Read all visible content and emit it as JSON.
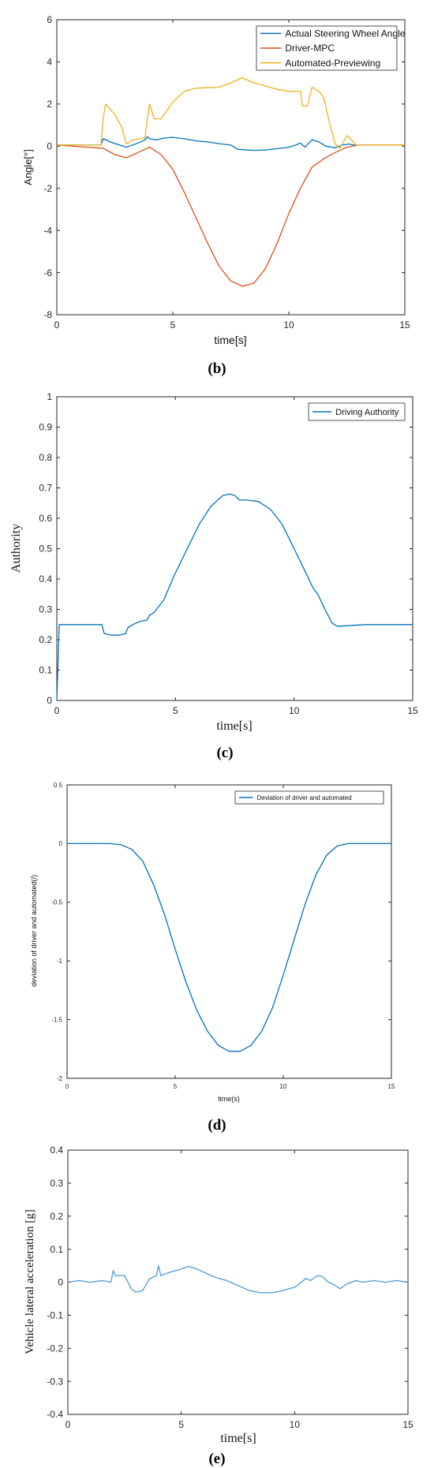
{
  "chart_data": [
    {
      "id": "b",
      "type": "line",
      "panel_label": "(b)",
      "xlabel": "time[s]",
      "ylabel": "Angle[°]",
      "xlim": [
        0,
        15
      ],
      "ylim": [
        -8,
        6
      ],
      "xticks": [
        "0",
        "5",
        "10",
        "15"
      ],
      "yticks": [
        "-8",
        "-6",
        "-4",
        "-2",
        "0",
        "2",
        "4",
        "6"
      ],
      "legend_position": "top-right",
      "series": [
        {
          "name": "Actual Steering Wheel Angle",
          "color": "#0072BD",
          "x": [
            0,
            1.9,
            2.0,
            2.3,
            2.7,
            3.0,
            3.5,
            3.8,
            3.9,
            4.0,
            4.3,
            4.6,
            5.0,
            5.5,
            6.0,
            6.5,
            7.0,
            7.5,
            7.8,
            8.5,
            9.0,
            9.5,
            10.0,
            10.3,
            10.5,
            10.7,
            11.0,
            11.3,
            11.6,
            12.0,
            12.3,
            12.6,
            12.8,
            13.0,
            15.0
          ],
          "y": [
            0.05,
            0.05,
            0.35,
            0.2,
            0.05,
            -0.05,
            0.15,
            0.3,
            0.45,
            0.35,
            0.3,
            0.38,
            0.42,
            0.35,
            0.25,
            0.2,
            0.12,
            0.05,
            -0.15,
            -0.2,
            -0.18,
            -0.12,
            -0.05,
            0.05,
            0.15,
            -0.05,
            0.3,
            0.2,
            0.0,
            -0.08,
            0.05,
            0.1,
            0.05,
            0.05,
            0.05
          ]
        },
        {
          "name": "Driver-MPC",
          "color": "#D95319",
          "x": [
            0,
            2.0,
            2.5,
            3.0,
            3.5,
            4.0,
            4.5,
            5.0,
            5.5,
            6.0,
            6.5,
            7.0,
            7.5,
            8.0,
            8.5,
            9.0,
            9.5,
            10.0,
            10.5,
            11.0,
            11.5,
            12.0,
            12.5,
            13.0,
            15.0
          ],
          "y": [
            0.05,
            -0.1,
            -0.4,
            -0.55,
            -0.3,
            -0.05,
            -0.4,
            -1.1,
            -2.2,
            -3.4,
            -4.6,
            -5.7,
            -6.4,
            -6.65,
            -6.5,
            -5.8,
            -4.6,
            -3.2,
            -2.0,
            -1.0,
            -0.6,
            -0.3,
            -0.05,
            0.05,
            0.05
          ]
        },
        {
          "name": "Automated-Previewing",
          "color": "#EDB120",
          "x": [
            0,
            1.9,
            2.0,
            2.1,
            2.5,
            2.8,
            3.0,
            3.3,
            3.8,
            3.9,
            4.0,
            4.2,
            4.5,
            5.0,
            5.5,
            6.0,
            7.0,
            7.5,
            8.0,
            8.5,
            9.0,
            9.5,
            10.0,
            10.5,
            10.6,
            10.8,
            11.0,
            11.3,
            11.5,
            11.8,
            12.0,
            12.2,
            12.5,
            12.7,
            12.9,
            15.0
          ],
          "y": [
            0.05,
            0.05,
            1.3,
            2.0,
            1.5,
            0.9,
            0.1,
            0.3,
            0.4,
            1.3,
            2.0,
            1.3,
            1.3,
            2.1,
            2.6,
            2.75,
            2.8,
            3.0,
            3.25,
            3.0,
            2.85,
            2.7,
            2.6,
            2.6,
            1.9,
            1.9,
            2.8,
            2.6,
            2.3,
            0.9,
            0.1,
            -0.1,
            0.5,
            0.3,
            0.05,
            0.05
          ]
        }
      ]
    },
    {
      "id": "c",
      "type": "line",
      "panel_label": "(c)",
      "xlabel": "time[s]",
      "ylabel": "Authority",
      "xlim": [
        0,
        15
      ],
      "ylim": [
        0,
        1
      ],
      "xticks": [
        "0",
        "5",
        "10",
        "15"
      ],
      "yticks": [
        "0",
        "0.1",
        "0.2",
        "0.3",
        "0.4",
        "0.5",
        "0.6",
        "0.7",
        "0.8",
        "0.9",
        "1"
      ],
      "legend_position": "top-right",
      "series": [
        {
          "name": "Driving Authority",
          "color": "#0072BD",
          "x": [
            0,
            0.1,
            0.3,
            1.0,
            1.9,
            2.0,
            2.3,
            2.6,
            2.9,
            3.0,
            3.2,
            3.5,
            3.8,
            3.9,
            4.1,
            4.5,
            5.0,
            5.5,
            6.0,
            6.5,
            7.0,
            7.3,
            7.5,
            7.7,
            8.0,
            8.5,
            9.0,
            9.5,
            10.0,
            10.5,
            10.8,
            11.0,
            11.3,
            11.6,
            11.8,
            12.0,
            13.0,
            14.0,
            15.0
          ],
          "y": [
            0.0,
            0.25,
            0.25,
            0.25,
            0.25,
            0.22,
            0.215,
            0.215,
            0.22,
            0.24,
            0.25,
            0.26,
            0.265,
            0.28,
            0.29,
            0.33,
            0.42,
            0.5,
            0.58,
            0.64,
            0.675,
            0.68,
            0.675,
            0.66,
            0.66,
            0.655,
            0.63,
            0.58,
            0.5,
            0.42,
            0.37,
            0.35,
            0.3,
            0.255,
            0.245,
            0.245,
            0.25,
            0.25,
            0.25
          ]
        }
      ]
    },
    {
      "id": "d",
      "type": "line",
      "panel_label": "(d)",
      "xlabel": "time(s)",
      "ylabel": "deviation of driver and automated(/)",
      "xlim": [
        0,
        15
      ],
      "ylim": [
        -2,
        0.5
      ],
      "xticks": [
        "0",
        "5",
        "10",
        "15"
      ],
      "yticks": [
        "-2",
        "-1.5",
        "-1",
        "-0.5",
        "0",
        "0.5"
      ],
      "legend_position": "top-right",
      "series": [
        {
          "name": "Deviation of driver and automated",
          "color": "#0072BD",
          "x": [
            0,
            1.0,
            2.0,
            2.5,
            3.0,
            3.5,
            4.0,
            4.5,
            5.0,
            5.5,
            6.0,
            6.5,
            7.0,
            7.5,
            8.0,
            8.5,
            9.0,
            9.5,
            10.0,
            10.5,
            11.0,
            11.5,
            12.0,
            12.5,
            13.0,
            14.0,
            15.0
          ],
          "y": [
            0,
            0,
            0,
            -0.01,
            -0.05,
            -0.15,
            -0.35,
            -0.6,
            -0.9,
            -1.18,
            -1.42,
            -1.6,
            -1.72,
            -1.77,
            -1.77,
            -1.72,
            -1.6,
            -1.4,
            -1.12,
            -0.82,
            -0.52,
            -0.27,
            -0.1,
            -0.02,
            0,
            0,
            0
          ]
        }
      ]
    },
    {
      "id": "e",
      "type": "line",
      "panel_label": "(e)",
      "xlabel": "time[s]",
      "ylabel": "Vehicle lateral acceleration [g]",
      "xlim": [
        0,
        15
      ],
      "ylim": [
        -0.4,
        0.4
      ],
      "xticks": [
        "0",
        "5",
        "10",
        "15"
      ],
      "yticks": [
        "-0.4",
        "-0.3",
        "-0.2",
        "-0.1",
        "0",
        "0.1",
        "0.2",
        "0.3",
        "0.4"
      ],
      "legend_position": "none",
      "series": [
        {
          "color": "#4A9AD4",
          "x": [
            0,
            0.5,
            1.0,
            1.5,
            1.9,
            2.0,
            2.1,
            2.5,
            2.8,
            3.0,
            3.3,
            3.6,
            3.9,
            4.0,
            4.1,
            4.5,
            5.0,
            5.3,
            5.7,
            6.0,
            6.5,
            7.0,
            7.5,
            8.0,
            8.5,
            9.0,
            9.5,
            10.0,
            10.3,
            10.5,
            10.7,
            11.0,
            11.2,
            11.5,
            11.8,
            12.0,
            12.3,
            12.7,
            13.0,
            13.5,
            14.0,
            14.5,
            15.0
          ],
          "y": [
            0.0,
            0.005,
            0.0,
            0.005,
            0.0,
            0.035,
            0.02,
            0.02,
            -0.02,
            -0.03,
            -0.025,
            0.01,
            0.02,
            0.05,
            0.02,
            0.03,
            0.04,
            0.048,
            0.04,
            0.03,
            0.015,
            0.005,
            -0.01,
            -0.025,
            -0.032,
            -0.032,
            -0.025,
            -0.015,
            0.0,
            0.012,
            0.005,
            0.02,
            0.018,
            0.0,
            -0.01,
            -0.02,
            -0.005,
            0.005,
            0.0,
            0.005,
            0.0,
            0.005,
            0.0
          ]
        }
      ]
    }
  ]
}
